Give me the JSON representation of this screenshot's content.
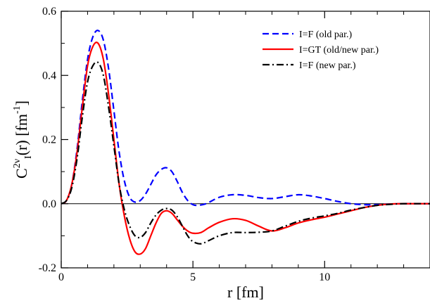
{
  "chart_data": {
    "type": "line",
    "xlabel": "r [fm]",
    "ylabel": {
      "base": "C",
      "sup": "2ν",
      "sub": "I",
      "suffix": "(r) [fm",
      "unit_sup": "-1",
      "close": "]"
    },
    "xlim": [
      0,
      14
    ],
    "ylim": [
      -0.2,
      0.6
    ],
    "xticks": [
      0,
      5,
      10
    ],
    "xtick_labels": [
      "0",
      "5",
      "10"
    ],
    "yticks": [
      -0.2,
      0.0,
      0.2,
      0.4,
      0.6
    ],
    "ytick_labels": [
      "-0.2",
      "0.0",
      "0.2",
      "0.4",
      "0.6"
    ],
    "grid": false,
    "zero_line": true,
    "legend_position": "top-right",
    "series": [
      {
        "name": "I=F (old par.)",
        "color": "#0000ff",
        "dash": "dashed",
        "x": [
          0,
          0.2,
          0.4,
          0.6,
          0.8,
          1.0,
          1.2,
          1.4,
          1.6,
          1.8,
          2.0,
          2.2,
          2.4,
          2.6,
          2.8,
          3.0,
          3.2,
          3.4,
          3.6,
          3.8,
          4.0,
          4.2,
          4.4,
          4.6,
          4.8,
          5.0,
          5.2,
          5.5,
          6.0,
          6.5,
          7.0,
          7.5,
          8.0,
          8.5,
          9.0,
          9.5,
          10.0,
          10.5,
          11.0,
          11.5,
          12.0,
          12.5,
          13.0,
          14.0
        ],
        "y": [
          0.0,
          0.01,
          0.06,
          0.17,
          0.32,
          0.45,
          0.52,
          0.54,
          0.51,
          0.42,
          0.29,
          0.16,
          0.07,
          0.02,
          0.005,
          0.01,
          0.03,
          0.06,
          0.09,
          0.107,
          0.112,
          0.1,
          0.07,
          0.035,
          0.01,
          -0.003,
          -0.005,
          0.0,
          0.02,
          0.028,
          0.026,
          0.019,
          0.016,
          0.022,
          0.028,
          0.024,
          0.016,
          0.007,
          0.0,
          -0.003,
          -0.003,
          -0.001,
          0.0,
          0.0
        ]
      },
      {
        "name": "I=GT (old/new par.)",
        "color": "#ff0000",
        "dash": "solid",
        "x": [
          0,
          0.2,
          0.4,
          0.6,
          0.8,
          1.0,
          1.2,
          1.4,
          1.6,
          1.8,
          2.0,
          2.2,
          2.4,
          2.6,
          2.8,
          3.0,
          3.2,
          3.4,
          3.6,
          3.8,
          4.0,
          4.2,
          4.4,
          4.6,
          4.8,
          5.0,
          5.3,
          5.6,
          6.0,
          6.5,
          7.0,
          7.5,
          8.0,
          8.5,
          9.0,
          9.5,
          10.0,
          10.5,
          11.0,
          11.5,
          12.0,
          12.5,
          13.0,
          14.0
        ],
        "y": [
          0.0,
          0.01,
          0.06,
          0.16,
          0.3,
          0.43,
          0.49,
          0.5,
          0.45,
          0.34,
          0.2,
          0.06,
          -0.04,
          -0.11,
          -0.15,
          -0.157,
          -0.14,
          -0.1,
          -0.06,
          -0.03,
          -0.022,
          -0.03,
          -0.05,
          -0.07,
          -0.085,
          -0.092,
          -0.09,
          -0.075,
          -0.058,
          -0.047,
          -0.052,
          -0.07,
          -0.085,
          -0.075,
          -0.06,
          -0.05,
          -0.042,
          -0.032,
          -0.022,
          -0.012,
          -0.005,
          -0.001,
          0.0,
          0.0
        ]
      },
      {
        "name": "I=F (new par.)",
        "color": "#000000",
        "dash": "dash-dot",
        "x": [
          0,
          0.2,
          0.4,
          0.6,
          0.8,
          1.0,
          1.2,
          1.4,
          1.6,
          1.8,
          2.0,
          2.2,
          2.4,
          2.6,
          2.8,
          3.0,
          3.2,
          3.4,
          3.6,
          3.8,
          4.0,
          4.2,
          4.4,
          4.6,
          4.8,
          5.0,
          5.3,
          5.6,
          6.0,
          6.5,
          7.0,
          7.5,
          8.0,
          8.5,
          9.0,
          9.5,
          10.0,
          10.5,
          11.0,
          11.5,
          12.0,
          12.5,
          13.0,
          14.0
        ],
        "y": [
          0.0,
          0.01,
          0.05,
          0.14,
          0.27,
          0.38,
          0.43,
          0.44,
          0.4,
          0.3,
          0.18,
          0.06,
          -0.02,
          -0.07,
          -0.1,
          -0.105,
          -0.09,
          -0.06,
          -0.035,
          -0.02,
          -0.015,
          -0.02,
          -0.04,
          -0.07,
          -0.1,
          -0.118,
          -0.125,
          -0.115,
          -0.1,
          -0.09,
          -0.09,
          -0.089,
          -0.085,
          -0.07,
          -0.055,
          -0.045,
          -0.038,
          -0.03,
          -0.02,
          -0.012,
          -0.005,
          -0.002,
          0.0,
          0.0
        ]
      }
    ]
  }
}
